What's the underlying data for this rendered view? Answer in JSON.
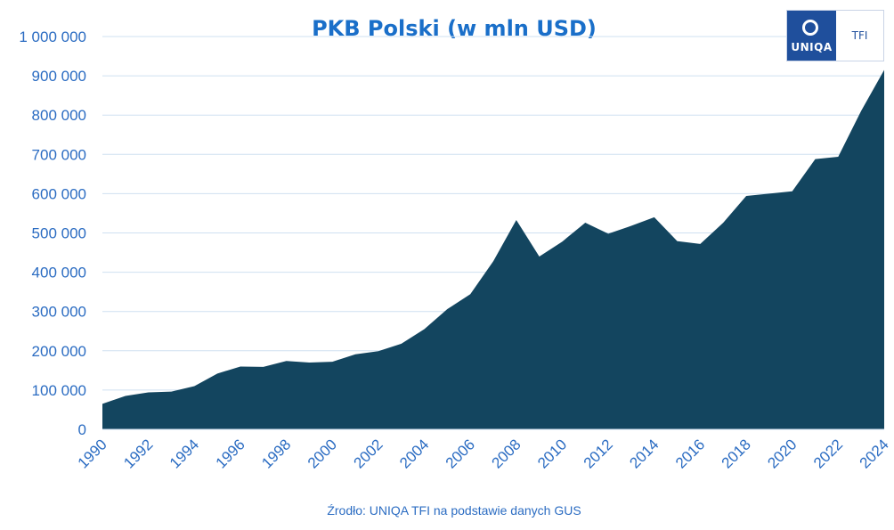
{
  "chart_data": {
    "type": "area",
    "title": "PKB Polski (w mln USD)",
    "source": "Źrodło: UNIQA TFI na podstawie danych GUS",
    "xlabel": "",
    "ylabel": "",
    "ylim": [
      0,
      1000000
    ],
    "yticks": [
      0,
      100000,
      200000,
      300000,
      400000,
      500000,
      600000,
      700000,
      800000,
      900000,
      1000000
    ],
    "ytick_labels": [
      "0",
      "100 000",
      "200 000",
      "300 000",
      "400 000",
      "500 000",
      "600 000",
      "700 000",
      "800 000",
      "900 000",
      "1 000 000"
    ],
    "xtick_labels": [
      "1990",
      "1992",
      "1994",
      "1996",
      "1998",
      "2000",
      "2002",
      "2004",
      "2006",
      "2008",
      "2010",
      "2012",
      "2014",
      "2016",
      "2018",
      "2020",
      "2022",
      "2024"
    ],
    "grid": true,
    "color": "#13455f",
    "x": [
      1990,
      1991,
      1992,
      1993,
      1994,
      1995,
      1996,
      1997,
      1998,
      1999,
      2000,
      2001,
      2002,
      2003,
      2004,
      2005,
      2006,
      2007,
      2008,
      2009,
      2010,
      2011,
      2012,
      2013,
      2014,
      2015,
      2016,
      2017,
      2018,
      2019,
      2020,
      2021,
      2022,
      2023,
      2024
    ],
    "values": [
      65000,
      85000,
      94000,
      96000,
      110000,
      142000,
      160000,
      159000,
      174000,
      170000,
      172000,
      191000,
      199000,
      218000,
      255000,
      306000,
      344000,
      428000,
      533000,
      440000,
      478000,
      526000,
      498000,
      518000,
      540000,
      479000,
      472000,
      526000,
      594000,
      600000,
      606000,
      688000,
      694000,
      811000,
      915000
    ]
  },
  "logo": {
    "brand": "UNIQA",
    "suffix": "TFI"
  }
}
